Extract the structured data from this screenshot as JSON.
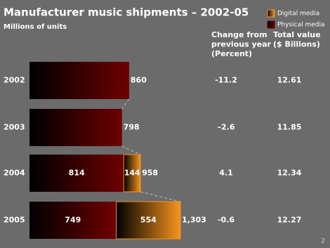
{
  "chart_data": {
    "type": "stacked-barh",
    "title": "Manufacturer music shipments – 2002-05",
    "subtitle": "Millions of units",
    "categories": [
      "2002",
      "2003",
      "2004",
      "2005"
    ],
    "series": [
      {
        "name": "Physical media",
        "color": "#6e0000",
        "values": [
          860,
          798,
          814,
          749
        ]
      },
      {
        "name": "Digital media",
        "color": "#f7941d",
        "values": [
          null,
          null,
          144,
          554
        ]
      }
    ],
    "totals": {
      "values": [
        860,
        798,
        958,
        1303
      ],
      "value_labels": [
        "860",
        "798",
        "958",
        "1,303"
      ]
    },
    "columns": [
      {
        "header": [
          "Change from",
          "previous year",
          "(Percent)"
        ],
        "values": [
          -11.2,
          -2.6,
          4.1,
          -0.6
        ],
        "value_labels": [
          "-11.2",
          "–2.6",
          "4.1",
          "-0.6"
        ]
      },
      {
        "header": [
          "Total value",
          "($ Billions)"
        ],
        "values": [
          12.61,
          11.85,
          12.34,
          12.27
        ]
      }
    ],
    "page_number": "2"
  }
}
